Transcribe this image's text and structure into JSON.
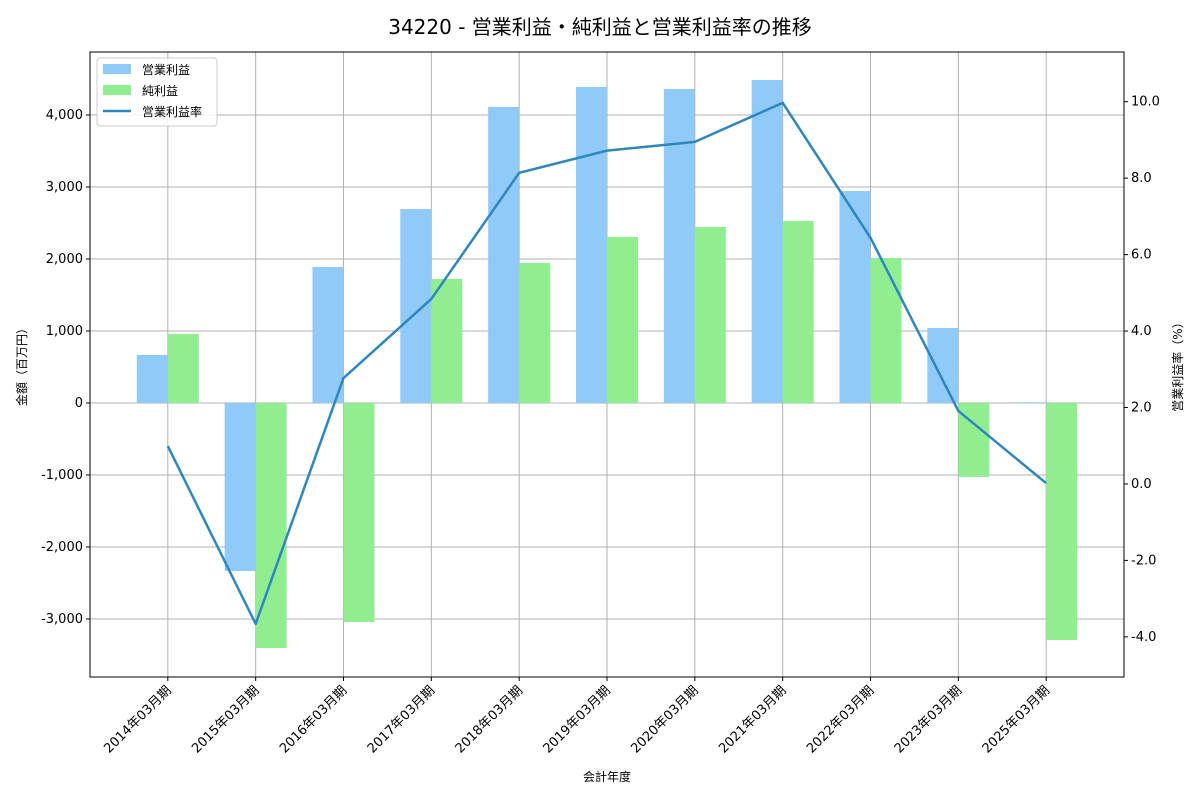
{
  "chart_data": {
    "type": "bar",
    "title": "34220 - 営業利益・純利益と営業利益率の推移",
    "xlabel": "会計年度",
    "ylabel": "金額（百万円）",
    "y2label": "営業利益率（%）",
    "categories": [
      "2014年03月期",
      "2015年03月期",
      "2016年03月期",
      "2017年03月期",
      "2018年03月期",
      "2019年03月期",
      "2020年03月期",
      "2021年03月期",
      "2022年03月期",
      "2023年03月期",
      "2025年03月期"
    ],
    "series": [
      {
        "name": "営業利益",
        "type": "bar",
        "axis": "left",
        "color": "#90caf9",
        "values": [
          667,
          -2333,
          1889,
          2694,
          4111,
          4389,
          4361,
          4486,
          2944,
          1042,
          10
        ]
      },
      {
        "name": "純利益",
        "type": "bar",
        "axis": "left",
        "color": "#90ee90",
        "values": [
          958,
          -3403,
          -3042,
          1722,
          1944,
          2306,
          2444,
          2528,
          2014,
          -1028,
          -3292
        ]
      },
      {
        "name": "営業利益率",
        "type": "line",
        "axis": "right",
        "color": "#2e86c1",
        "values": [
          0.99,
          -3.66,
          2.77,
          4.84,
          8.14,
          8.72,
          8.95,
          9.97,
          6.44,
          1.91,
          0.02
        ]
      }
    ],
    "ylim": [
      -3806,
      4875
    ],
    "y2lim": [
      -5.05,
      11.3
    ],
    "yticks": [
      -3000,
      -2000,
      -1000,
      0,
      1000,
      2000,
      3000,
      4000
    ],
    "ytick_labels": [
      "-3,000",
      "-2,000",
      "-1,000",
      "0",
      "1,000",
      "2,000",
      "3,000",
      "4,000"
    ],
    "y2ticks": [
      -4,
      -2,
      0,
      2,
      4,
      6,
      8,
      10
    ],
    "y2tick_labels": [
      "-4.0",
      "-2.0",
      "0.0",
      "2.0",
      "4.0",
      "6.0",
      "8.0",
      "10.0"
    ],
    "grid": true,
    "legend": "top-left"
  }
}
